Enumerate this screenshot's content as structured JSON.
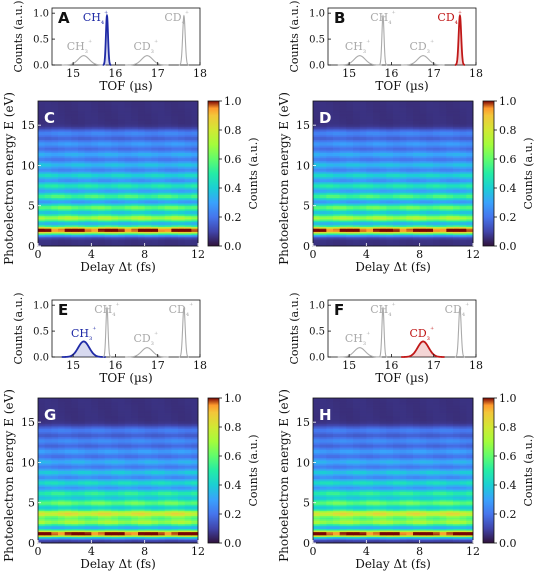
{
  "panels": {
    "A": "A",
    "B": "B",
    "C": "C",
    "D": "D",
    "E": "E",
    "F": "F",
    "G": "G",
    "H": "H"
  },
  "chart_data": [
    {
      "panel": "A",
      "type": "line",
      "xlabel": "TOF (µs)",
      "ylabel": "Counts (a.u.)",
      "xlim": [
        14.5,
        18
      ],
      "ylim": [
        0,
        1.1
      ],
      "xticks": [
        15,
        16,
        17,
        18
      ],
      "yticks": [
        "0.0",
        "0.5",
        "1.0"
      ],
      "highlight": "CH4+",
      "highlight_color": "#1f2aa6",
      "series": [
        {
          "name": "CH3+",
          "peak_x": 15.25,
          "height": 0.18,
          "width": 0.13,
          "highlighted": false
        },
        {
          "name": "CH4+",
          "peak_x": 15.8,
          "height": 0.95,
          "width": 0.025,
          "highlighted": true
        },
        {
          "name": "CD3+",
          "peak_x": 16.75,
          "height": 0.18,
          "width": 0.13,
          "highlighted": false
        },
        {
          "name": "CD4+",
          "peak_x": 17.62,
          "height": 0.95,
          "width": 0.03,
          "highlighted": false
        }
      ],
      "labels": [
        {
          "text": "CH₄⁺",
          "color": "#1f2aa6"
        },
        {
          "text": "CH₃⁺",
          "color": "#aaaaaa"
        },
        {
          "text": "CD₃⁺",
          "color": "#aaaaaa"
        },
        {
          "text": "CD₄⁺",
          "color": "#aaaaaa"
        }
      ]
    },
    {
      "panel": "B",
      "type": "line",
      "xlabel": "TOF (µs)",
      "ylabel": "Counts (a.u.)",
      "xlim": [
        14.5,
        18
      ],
      "ylim": [
        0,
        1.1
      ],
      "xticks": [
        15,
        16,
        17,
        18
      ],
      "yticks": [
        "0.0",
        "0.5",
        "1.0"
      ],
      "highlight": "CD4+",
      "highlight_color": "#c01818",
      "series": [
        {
          "name": "CH3+",
          "peak_x": 15.25,
          "height": 0.18,
          "width": 0.13,
          "highlighted": false
        },
        {
          "name": "CH4+",
          "peak_x": 15.8,
          "height": 0.95,
          "width": 0.025,
          "highlighted": false
        },
        {
          "name": "CD3+",
          "peak_x": 16.75,
          "height": 0.18,
          "width": 0.13,
          "highlighted": false
        },
        {
          "name": "CD4+",
          "peak_x": 17.62,
          "height": 0.95,
          "width": 0.03,
          "highlighted": true
        }
      ],
      "labels": [
        {
          "text": "CH₄⁺",
          "color": "#aaaaaa"
        },
        {
          "text": "CD₄⁺",
          "color": "#c01818"
        },
        {
          "text": "CH₃⁺",
          "color": "#aaaaaa"
        },
        {
          "text": "CD₃⁺",
          "color": "#aaaaaa"
        }
      ]
    },
    {
      "panel": "C",
      "type": "heatmap",
      "xlabel": "Delay Δt (fs)",
      "ylabel": "Photoelectron energy E (eV)",
      "colorbar_label": "Counts (a.u.)",
      "xlim": [
        0,
        12
      ],
      "ylim": [
        0,
        18
      ],
      "xticks": [
        0,
        4,
        8,
        12
      ],
      "yticks": [
        0,
        5,
        10,
        15
      ],
      "cticks": [
        "0.0",
        "0.2",
        "0.4",
        "0.6",
        "0.8",
        "1.0"
      ],
      "colorscale": "jet",
      "bands": [
        [
          2.0,
          1.0,
          0.4
        ],
        [
          3.5,
          0.65,
          0.4
        ],
        [
          4.8,
          0.55,
          0.4
        ],
        [
          6.2,
          0.5,
          0.4
        ],
        [
          7.5,
          0.42,
          0.4
        ],
        [
          8.8,
          0.36,
          0.4
        ],
        [
          10.1,
          0.3,
          0.4
        ],
        [
          11.4,
          0.26,
          0.4
        ],
        [
          12.7,
          0.22,
          0.4
        ],
        [
          14.0,
          0.18,
          0.4
        ]
      ]
    },
    {
      "panel": "D",
      "type": "heatmap",
      "xlabel": "Delay Δt (fs)",
      "ylabel": "Photoelectron energy E (eV)",
      "colorbar_label": "Counts (a.u.)",
      "xlim": [
        0,
        12
      ],
      "ylim": [
        0,
        18
      ],
      "xticks": [
        0,
        4,
        8,
        12
      ],
      "yticks": [
        0,
        5,
        10,
        15
      ],
      "cticks": [
        "0.0",
        "0.2",
        "0.4",
        "0.6",
        "0.8",
        "1.0"
      ],
      "colorscale": "jet",
      "bands": [
        [
          2.0,
          1.0,
          0.4
        ],
        [
          3.5,
          0.65,
          0.4
        ],
        [
          4.8,
          0.55,
          0.4
        ],
        [
          6.2,
          0.5,
          0.4
        ],
        [
          7.5,
          0.42,
          0.4
        ],
        [
          8.8,
          0.36,
          0.4
        ],
        [
          10.1,
          0.3,
          0.4
        ],
        [
          11.4,
          0.26,
          0.4
        ],
        [
          12.7,
          0.22,
          0.4
        ],
        [
          14.0,
          0.18,
          0.4
        ]
      ]
    },
    {
      "panel": "E",
      "type": "line",
      "xlabel": "TOF (µs)",
      "ylabel": "Counts (a.u.)",
      "xlim": [
        14.5,
        18
      ],
      "ylim": [
        0,
        1.1
      ],
      "xticks": [
        15,
        16,
        17,
        18
      ],
      "yticks": [
        "0.0",
        "0.5",
        "1.0"
      ],
      "highlight": "CH3+",
      "highlight_color": "#1f2aa6",
      "series": [
        {
          "name": "CH3+",
          "peak_x": 15.25,
          "height": 0.3,
          "width": 0.13,
          "highlighted": true
        },
        {
          "name": "CH4+",
          "peak_x": 15.8,
          "height": 0.95,
          "width": 0.025,
          "highlighted": false
        },
        {
          "name": "CD3+",
          "peak_x": 16.75,
          "height": 0.18,
          "width": 0.13,
          "highlighted": false
        },
        {
          "name": "CD4+",
          "peak_x": 17.62,
          "height": 0.95,
          "width": 0.03,
          "highlighted": false
        }
      ],
      "labels": [
        {
          "text": "CH₃⁺",
          "color": "#1f2aa6"
        },
        {
          "text": "CH₄⁺",
          "color": "#aaaaaa"
        },
        {
          "text": "CD₃⁺",
          "color": "#aaaaaa"
        },
        {
          "text": "CD₄⁺",
          "color": "#aaaaaa"
        }
      ]
    },
    {
      "panel": "F",
      "type": "line",
      "xlabel": "TOF (µs)",
      "ylabel": "Counts (a.u.)",
      "xlim": [
        14.5,
        18
      ],
      "ylim": [
        0,
        1.1
      ],
      "xticks": [
        15,
        16,
        17,
        18
      ],
      "yticks": [
        "0.0",
        "0.5",
        "1.0"
      ],
      "highlight": "CD3+",
      "highlight_color": "#c01818",
      "series": [
        {
          "name": "CH3+",
          "peak_x": 15.25,
          "height": 0.18,
          "width": 0.13,
          "highlighted": false
        },
        {
          "name": "CH4+",
          "peak_x": 15.8,
          "height": 0.95,
          "width": 0.025,
          "highlighted": false
        },
        {
          "name": "CD3+",
          "peak_x": 16.75,
          "height": 0.3,
          "width": 0.13,
          "highlighted": true
        },
        {
          "name": "CD4+",
          "peak_x": 17.62,
          "height": 0.95,
          "width": 0.03,
          "highlighted": false
        }
      ],
      "labels": [
        {
          "text": "CH₃⁺",
          "color": "#aaaaaa"
        },
        {
          "text": "CH₄⁺",
          "color": "#aaaaaa"
        },
        {
          "text": "CD₃⁺",
          "color": "#c01818"
        },
        {
          "text": "CD₄⁺",
          "color": "#aaaaaa"
        }
      ]
    },
    {
      "panel": "G",
      "type": "heatmap",
      "xlabel": "Delay Δt (fs)",
      "ylabel": "Photoelectron energy E (eV)",
      "colorbar_label": "Counts (a.u.)",
      "xlim": [
        0,
        12
      ],
      "ylim": [
        0,
        18
      ],
      "xticks": [
        0,
        4,
        8,
        12
      ],
      "yticks": [
        0,
        5,
        10,
        15
      ],
      "cticks": [
        "0.0",
        "0.2",
        "0.4",
        "0.6",
        "0.8",
        "1.0"
      ],
      "colorscale": "jet",
      "bands": [
        [
          1.2,
          1.0,
          0.35
        ],
        [
          2.6,
          0.62,
          0.4
        ],
        [
          3.7,
          0.75,
          0.4
        ],
        [
          5.0,
          0.55,
          0.4
        ],
        [
          6.2,
          0.45,
          0.4
        ],
        [
          7.5,
          0.38,
          0.4
        ],
        [
          8.8,
          0.32,
          0.4
        ],
        [
          10.1,
          0.27,
          0.4
        ],
        [
          11.4,
          0.23,
          0.4
        ],
        [
          12.7,
          0.19,
          0.4
        ],
        [
          14.0,
          0.16,
          0.4
        ]
      ]
    },
    {
      "panel": "H",
      "type": "heatmap",
      "xlabel": "Delay Δt (fs)",
      "ylabel": "Photoelectron energy E (eV)",
      "colorbar_label": "Counts (a.u.)",
      "xlim": [
        0,
        12
      ],
      "ylim": [
        0,
        18
      ],
      "xticks": [
        0,
        4,
        8,
        12
      ],
      "yticks": [
        0,
        5,
        10,
        15
      ],
      "cticks": [
        "0.0",
        "0.2",
        "0.4",
        "0.6",
        "0.8",
        "1.0"
      ],
      "colorscale": "jet",
      "bands": [
        [
          1.2,
          1.0,
          0.35
        ],
        [
          2.6,
          0.62,
          0.4
        ],
        [
          3.7,
          0.75,
          0.4
        ],
        [
          5.0,
          0.55,
          0.4
        ],
        [
          6.2,
          0.45,
          0.4
        ],
        [
          7.5,
          0.38,
          0.4
        ],
        [
          8.8,
          0.32,
          0.4
        ],
        [
          10.1,
          0.27,
          0.4
        ],
        [
          11.4,
          0.23,
          0.4
        ],
        [
          12.7,
          0.19,
          0.4
        ],
        [
          14.0,
          0.16,
          0.4
        ]
      ]
    }
  ]
}
